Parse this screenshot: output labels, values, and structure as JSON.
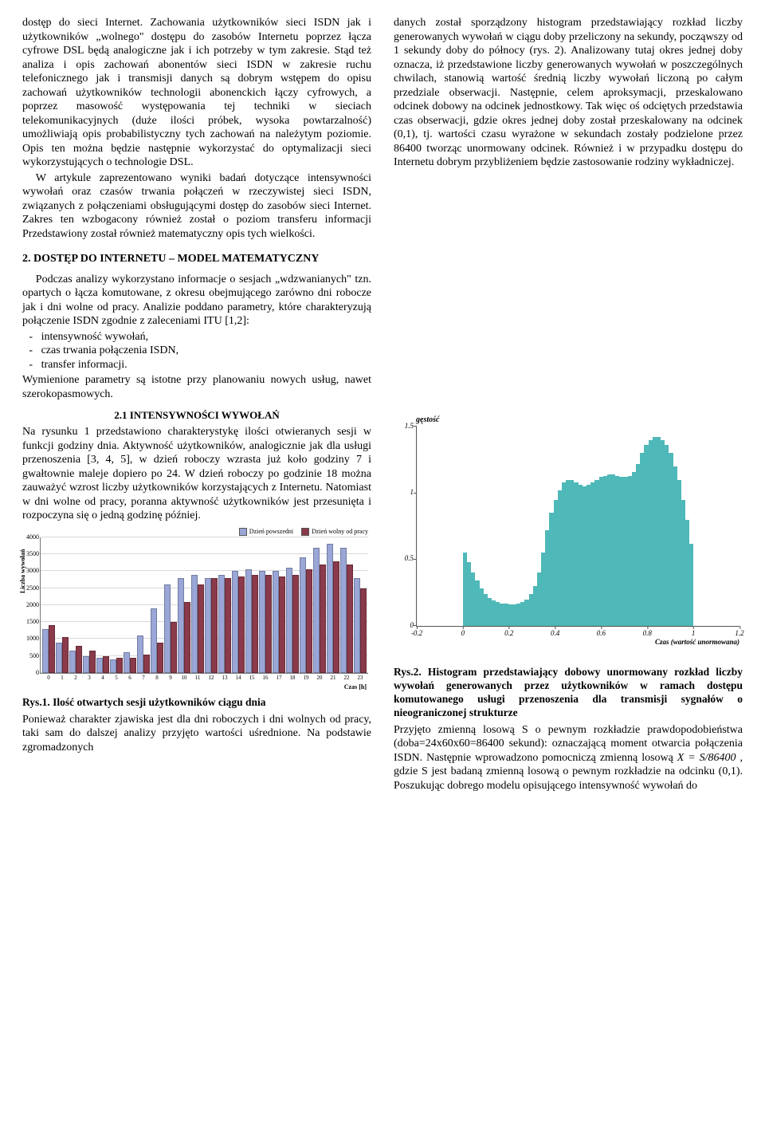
{
  "left": {
    "p1": "dostęp do sieci Internet. Zachowania użytkowników sieci ISDN jak i użytkowników „wolnego\" dostępu do zasobów Internetu poprzez łącza cyfrowe DSL będą analogiczne jak i ich potrzeby w tym zakresie. Stąd też analiza i opis zachowań abonentów sieci ISDN w zakresie ruchu telefonicznego jak i transmisji danych są dobrym wstępem do opisu zachowań użytkowników technologii abonenckich łączy cyfrowych, a poprzez masowość występowania tej techniki w sieciach telekomunikacyjnych (duże ilości próbek, wysoka powtarzalność) umożliwiają opis probabilistyczny tych zachowań na należytym poziomie. Opis ten można będzie następnie wykorzystać do optymalizacji sieci wykorzystujących o technologie DSL.",
    "p2": "W artykule zaprezentowano wyniki badań dotyczące intensywności wywołań oraz czasów trwania połączeń w rzeczywistej sieci ISDN, związanych z połączeniami obsługującymi dostęp do zasobów sieci Internet. Zakres ten wzbogacony również został o poziom transferu informacji Przedstawiony został również matematyczny opis tych wielkości.",
    "sec2_title": "2.  DOSTĘP DO INTERNETU – MODEL MATEMATYCZNY",
    "p3": "Podczas analizy wykorzystano informacje o sesjach „wdzwanianych\" tzn. opartych o łącza komutowane, z okresu obejmującego zarówno dni robocze jak i dni wolne od pracy. Analizie poddano parametry, które charakteryzują połączenie ISDN zgodnie z zaleceniami ITU [1,2]:",
    "li1": "intensywność wywołań,",
    "li2": "czas trwania połączenia ISDN,",
    "li3": "transfer informacji.",
    "p4": "Wymienione parametry są istotne przy planowaniu nowych usług, nawet szerokopasmowych.",
    "sec21_title": "2.1  INTENSYWNOŚCI WYWOŁAŃ",
    "p5": "Na rysunku 1 przedstawiono charakterystykę ilości otwieranych sesji w funkcji godziny dnia. Aktywność użytkowników, analogicznie jak dla usługi przenoszenia [3, 4, 5], w dzień roboczy wzrasta już koło godziny 7 i gwałtownie maleje dopiero po 24. W dzień roboczy po godzinie 18 można zauważyć wzrost liczby użytkowników korzystających z Internetu. Natomiast w dni wolne od pracy, poranna aktywność użytkowników jest przesunięta i rozpoczyna się o jedną godzinę później.",
    "fig1_title": "Rys.1. Ilość otwartych sesji użytkowników ciągu dnia",
    "fig1_cont": "Ponieważ charakter zjawiska jest dla dni roboczych i dni wolnych od pracy, taki sam do dalszej analizy przyjęto wartości uśrednione. Na podstawie zgromadzonych"
  },
  "right": {
    "p1": "danych został sporządzony histogram przedstawiający rozkład liczby generowanych wywołań w ciągu doby przeliczony na sekundy, począwszy od 1 sekundy doby do północy (rys. 2). Analizowany tutaj okres jednej doby oznacza, iż przedstawione liczby generowanych wywołań w poszczególnych chwilach, stanowią wartość średnią liczby wywołań liczoną po całym przedziale obserwacji. Następnie, celem aproksymacji, przeskalowano odcinek dobowy na odcinek jednostkowy. Tak więc oś odciętych przedstawia czas obserwacji, gdzie okres jednej doby został przeskalowany na odcinek (0,1), tj. wartości czasu wyrażone w sekundach zostały podzielone przez 86400 tworząc unormowany odcinek. Również i w przypadku dostępu do Internetu dobrym przybliżeniem będzie zastosowanie rodziny wykładniczej.",
    "fig2_b": "Rys.2. Histogram przedstawiający dobowy unormowany rozkład liczby wywołań generowanych przez użytkowników w ramach dostępu komutowanego usługi przenoszenia dla transmisji sygnałów o nieograniczonej strukturze",
    "p2a": "Przyjęto zmienną losową S o pewnym rozkładzie prawdopodobieństwa (doba=24x60x60=86400 sekund): oznaczającą moment otwarcia połączenia ISDN. Następnie wprowadzono pomocniczą zmienną losową ",
    "p2b": ", gdzie S jest badaną zmienną losową o pewnym rozkładzie na odcinku (0,1). Poszukując dobrego modelu opisującego intensywność wywołań do",
    "formula": "X = S/86400"
  },
  "chart1": {
    "legend_a": "Dzień powszedni",
    "legend_b": "Dzień wolny od pracy",
    "color_a": "#9aa6d6",
    "color_b": "#8a3a4a",
    "ylabel": "Liczba wywołań",
    "xlabel": "Czas [h]",
    "ymax": 4000,
    "yticks": [
      0,
      500,
      1000,
      1500,
      2000,
      2500,
      3000,
      3500,
      4000
    ],
    "hours": [
      0,
      1,
      2,
      3,
      4,
      5,
      6,
      7,
      8,
      9,
      10,
      11,
      12,
      13,
      14,
      15,
      16,
      17,
      18,
      19,
      20,
      21,
      22,
      23
    ],
    "series_a": [
      1300,
      900,
      650,
      500,
      450,
      400,
      600,
      1100,
      1900,
      2600,
      2800,
      2900,
      2800,
      2900,
      3000,
      3050,
      3000,
      3000,
      3100,
      3400,
      3700,
      3800,
      3700,
      2800
    ],
    "series_b": [
      1400,
      1050,
      800,
      650,
      500,
      450,
      450,
      550,
      900,
      1500,
      2100,
      2600,
      2800,
      2800,
      2850,
      2900,
      2900,
      2850,
      2900,
      3050,
      3200,
      3300,
      3200,
      2500
    ]
  },
  "chart2": {
    "title": "gęstość",
    "xlabel": "Czas (wartość unormowana)",
    "color": "#4fb8b8",
    "ymax": 1.5,
    "yticks": [
      0,
      0.5,
      1,
      1.5
    ],
    "xticks": [
      -0.2,
      0,
      0.2,
      0.4,
      0.6,
      0.8,
      1,
      1.2
    ],
    "xmin": -0.2,
    "xmax": 1.2,
    "values": [
      0.55,
      0.48,
      0.4,
      0.34,
      0.28,
      0.24,
      0.21,
      0.19,
      0.18,
      0.17,
      0.17,
      0.16,
      0.16,
      0.17,
      0.18,
      0.2,
      0.24,
      0.3,
      0.4,
      0.55,
      0.72,
      0.85,
      0.95,
      1.02,
      1.08,
      1.1,
      1.1,
      1.08,
      1.06,
      1.05,
      1.06,
      1.08,
      1.1,
      1.12,
      1.13,
      1.14,
      1.14,
      1.13,
      1.12,
      1.12,
      1.13,
      1.16,
      1.22,
      1.3,
      1.36,
      1.4,
      1.42,
      1.42,
      1.4,
      1.36,
      1.3,
      1.2,
      1.1,
      0.95,
      0.8,
      0.62
    ]
  }
}
